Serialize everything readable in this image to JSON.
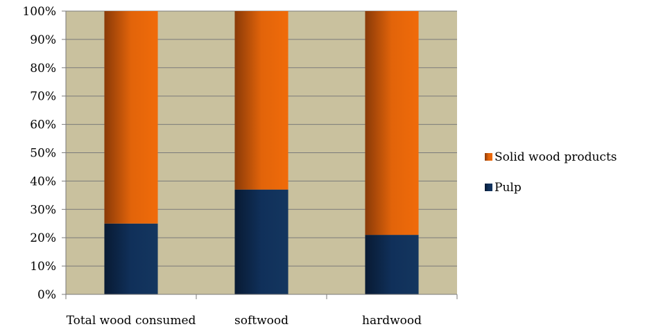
{
  "chart_data": {
    "type": "bar",
    "stacked": true,
    "percent_stacked": true,
    "categories": [
      "Total wood consumed",
      "softwood",
      "hardwood"
    ],
    "series": [
      {
        "name": "Pulp",
        "values": [
          25,
          37,
          21
        ],
        "color": "#10305a"
      },
      {
        "name": "Solid wood products",
        "values": [
          75,
          63,
          79
        ],
        "color": "#e8690a"
      }
    ],
    "y_ticks": [
      "0%",
      "10%",
      "20%",
      "30%",
      "40%",
      "50%",
      "60%",
      "70%",
      "80%",
      "90%",
      "100%"
    ],
    "ylim": [
      0,
      100
    ],
    "grid": true,
    "plot_background": "#c9c19e",
    "legend_position": "right",
    "legend_order": [
      "Solid wood products",
      "Pulp"
    ]
  }
}
